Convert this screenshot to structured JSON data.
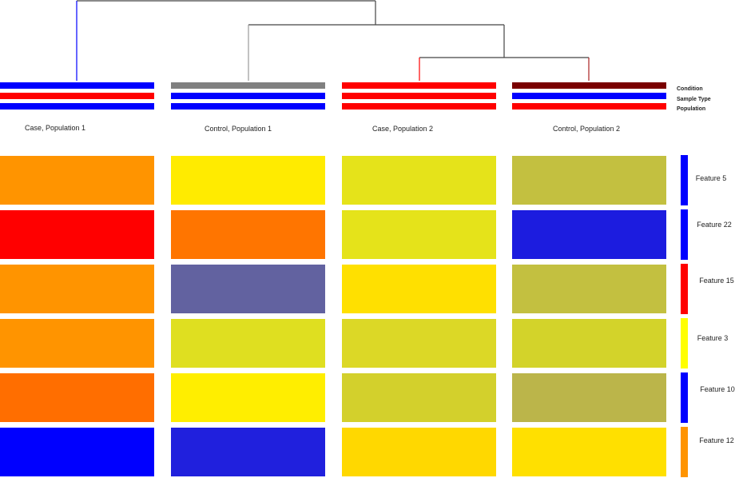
{
  "chart_data": {
    "type": "heatmap",
    "columns": [
      "Case, Population 1",
      "Control, Population 1",
      "Case, Population 2",
      "Control, Population 2"
    ],
    "rows": [
      "Feature 5",
      "Feature 22",
      "Feature 15",
      "Feature 3",
      "Feature 10",
      "Feature 12"
    ],
    "annotation_tracks": [
      "Condition",
      "Sample Type",
      "Population"
    ],
    "annotation_colors": [
      [
        "#0000FF",
        "#FF0000",
        "#0000FF"
      ],
      [
        "#808080",
        "#0000FF",
        "#0000FF"
      ],
      [
        "#FF0000",
        "#FF0000",
        "#FF0000"
      ],
      [
        "#7A0000",
        "#0000FF",
        "#FF0000"
      ]
    ],
    "row_annotation_colors": [
      "#0000FF",
      "#0000FF",
      "#FF0000",
      "#FFFF00",
      "#0000FF",
      "#FF9400"
    ],
    "cell_colors": [
      [
        "#FF9400",
        "#FFEB00",
        "#E5E31A",
        "#C3C040"
      ],
      [
        "#FF0000",
        "#FF7500",
        "#E5E31A",
        "#1C1CDF"
      ],
      [
        "#FF9400",
        "#6262A0",
        "#FFE000",
        "#C3C040"
      ],
      [
        "#FF9400",
        "#DFDF20",
        "#DCD826",
        "#D3D32A"
      ],
      [
        "#FF6E00",
        "#FFEE00",
        "#D3D02C",
        "#BBB54A"
      ],
      [
        "#0000FF",
        "#2020DD",
        "#FFD800",
        "#FFE000"
      ]
    ],
    "dendrogram": {
      "merge_order": [
        [
          "Case, Population 2",
          "Control, Population 2"
        ],
        [
          "Control, Population 1",
          "cluster"
        ],
        [
          "Case, Population 1",
          "cluster"
        ]
      ],
      "leaf_branch_colors": [
        "#0000FF",
        "#999999",
        "#FF0000",
        "#AA2222"
      ],
      "link_color": "#444444"
    }
  }
}
